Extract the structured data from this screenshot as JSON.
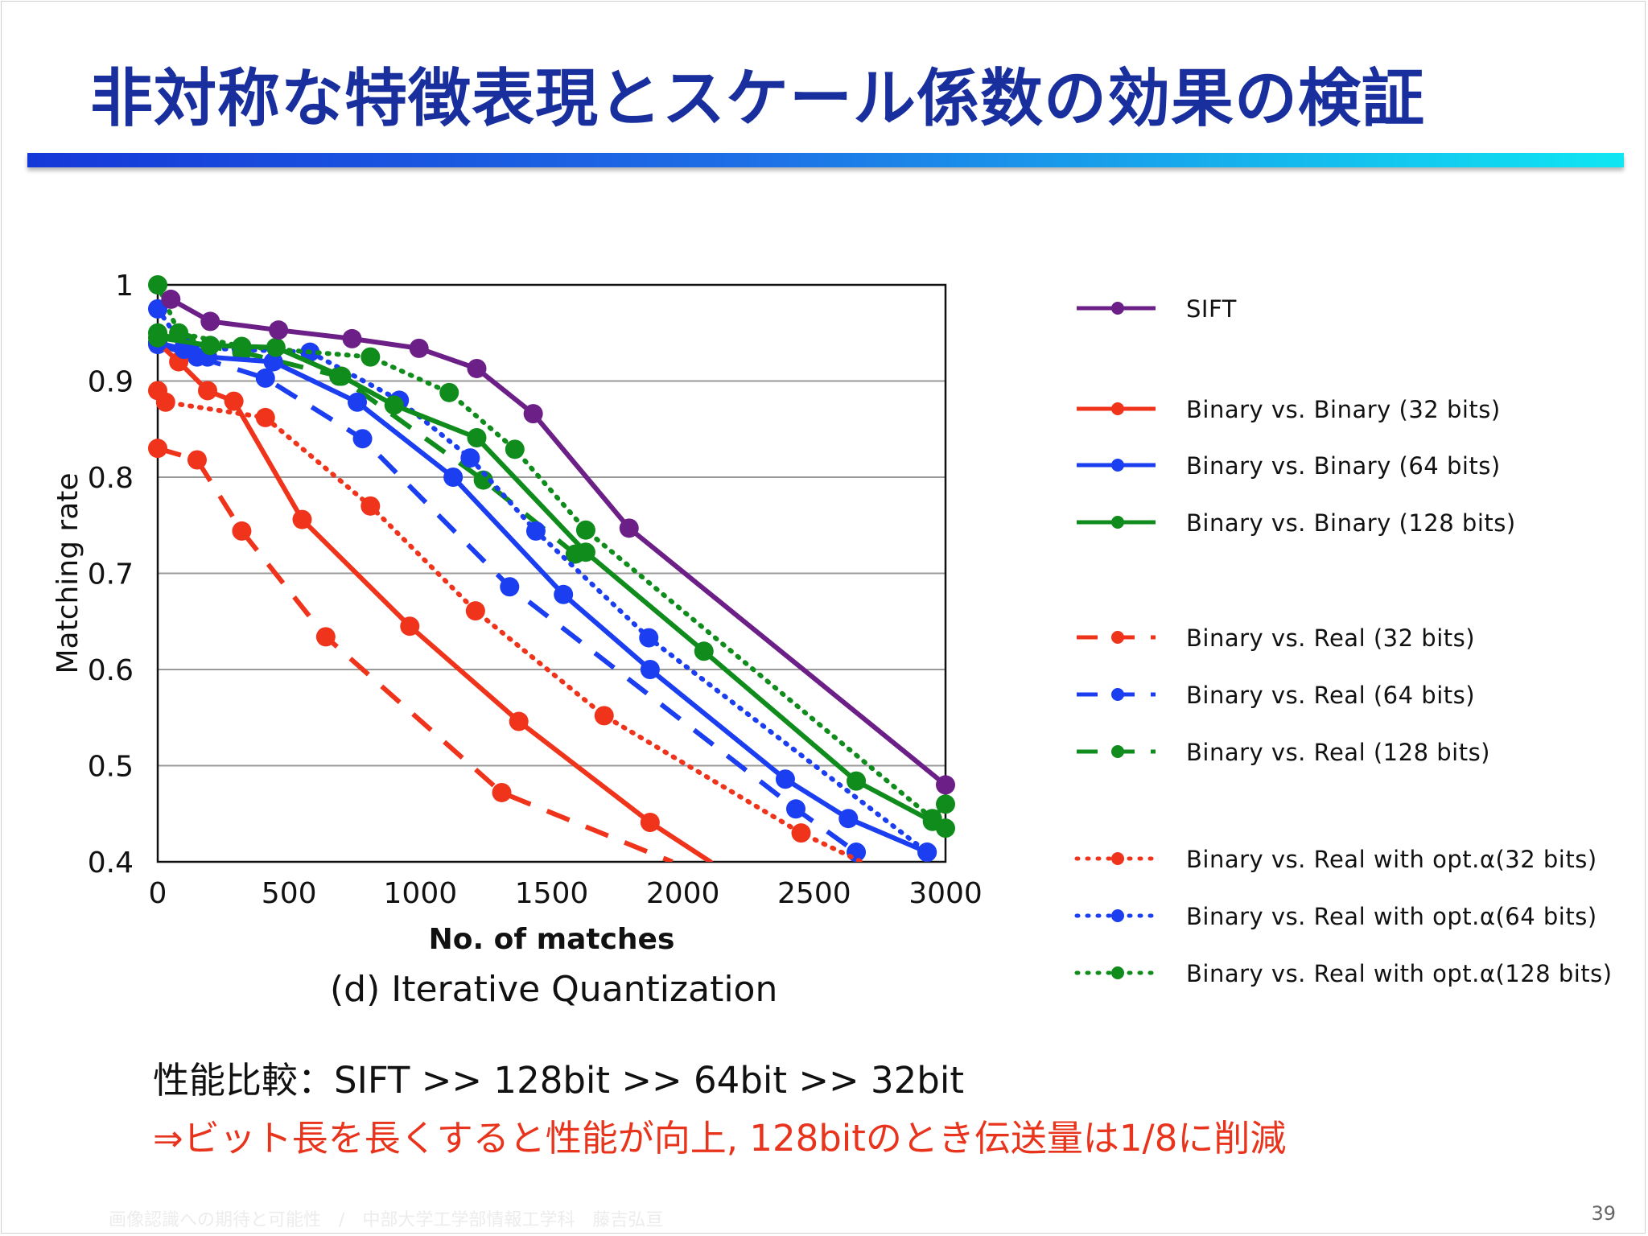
{
  "slide": {
    "title": "非対称な特徴表現とスケール係数の効果の検証",
    "caption": "(d) Iterative Quantization",
    "note_line1": "性能比較：SIFT >> 128bit >> 64bit >> 32bit",
    "note_line2": "⇒ビット長を長くすると性能が向上, 128bitのとき伝送量は1/8に削減",
    "footer": "画像認識への期待と可能性　/　中部大学工学部情報工学科　藤吉弘亘",
    "page_number": "39"
  },
  "chart_data": {
    "type": "line",
    "title": "",
    "xlabel": "No. of matches",
    "ylabel": "Matching rate",
    "xlim": [
      0,
      3000
    ],
    "ylim": [
      0.4,
      1.0
    ],
    "xticks": [
      0,
      500,
      1000,
      1500,
      2000,
      2500,
      3000
    ],
    "xtick_labels": [
      "0",
      "500",
      "1000",
      "1500",
      "2000",
      "2500",
      "3000"
    ],
    "yticks": [
      0.4,
      0.5,
      0.6,
      0.7,
      0.8,
      0.9,
      1.0
    ],
    "ytick_labels": [
      "0.4",
      "0.5",
      "0.6",
      "0.7",
      "0.8",
      "0.9",
      "1"
    ],
    "grid": "horizontal",
    "legend_position": "right",
    "series": [
      {
        "name": "SIFT",
        "color": "#6b1f87",
        "style": "solid",
        "points": [
          [
            50,
            0.985
          ],
          [
            200,
            0.962
          ],
          [
            460,
            0.953
          ],
          [
            740,
            0.944
          ],
          [
            995,
            0.934
          ],
          [
            1215,
            0.913
          ],
          [
            1430,
            0.866
          ],
          [
            1795,
            0.747
          ],
          [
            3000,
            0.48
          ]
        ]
      },
      {
        "name": "Binary vs. Binary (32 bits)",
        "color": "#f0341c",
        "style": "solid",
        "points": [
          [
            0,
            0.94
          ],
          [
            80,
            0.92
          ],
          [
            190,
            0.89
          ],
          [
            290,
            0.879
          ],
          [
            550,
            0.756
          ],
          [
            960,
            0.645
          ],
          [
            1375,
            0.546
          ],
          [
            1875,
            0.441
          ],
          [
            2105,
            0.4
          ]
        ]
      },
      {
        "name": "Binary vs. Binary (64 bits)",
        "color": "#1a3ef0",
        "style": "solid",
        "points": [
          [
            0,
            0.94
          ],
          [
            100,
            0.933
          ],
          [
            190,
            0.925
          ],
          [
            440,
            0.92
          ],
          [
            760,
            0.878
          ],
          [
            1125,
            0.8
          ],
          [
            1545,
            0.678
          ],
          [
            1875,
            0.6
          ],
          [
            2390,
            0.486
          ],
          [
            2630,
            0.445
          ],
          [
            2930,
            0.41
          ]
        ]
      },
      {
        "name": "Binary vs. Binary (128 bits)",
        "color": "#0f8c1c",
        "style": "solid",
        "points": [
          [
            0,
            0.945
          ],
          [
            200,
            0.937
          ],
          [
            450,
            0.935
          ],
          [
            700,
            0.905
          ],
          [
            900,
            0.875
          ],
          [
            1215,
            0.841
          ],
          [
            1630,
            0.722
          ],
          [
            2080,
            0.619
          ],
          [
            2660,
            0.484
          ],
          [
            2950,
            0.442
          ],
          [
            3000,
            0.435
          ]
        ]
      },
      {
        "name": "Binary vs. Real (32 bits)",
        "color": "#f0341c",
        "style": "dashed",
        "points": [
          [
            0,
            0.83
          ],
          [
            150,
            0.818
          ],
          [
            320,
            0.744
          ],
          [
            640,
            0.634
          ],
          [
            1310,
            0.472
          ],
          [
            1960,
            0.4
          ]
        ]
      },
      {
        "name": "Binary vs. Real (64 bits)",
        "color": "#1a3ef0",
        "style": "dashed",
        "points": [
          [
            0,
            0.938
          ],
          [
            150,
            0.925
          ],
          [
            410,
            0.903
          ],
          [
            780,
            0.84
          ],
          [
            1340,
            0.686
          ],
          [
            2430,
            0.455
          ],
          [
            2660,
            0.41
          ]
        ]
      },
      {
        "name": "Binary vs. Real (128 bits)",
        "color": "#0f8c1c",
        "style": "dashed",
        "points": [
          [
            0,
            0.95
          ],
          [
            110,
            0.94
          ],
          [
            320,
            0.93
          ],
          [
            690,
            0.905
          ],
          [
            1240,
            0.797
          ],
          [
            1590,
            0.72
          ]
        ]
      },
      {
        "name": "Binary vs. Real with opt.α(32 bits)",
        "color": "#f0341c",
        "style": "dotted",
        "points": [
          [
            0,
            0.89
          ],
          [
            30,
            0.878
          ],
          [
            410,
            0.862
          ],
          [
            810,
            0.77
          ],
          [
            1210,
            0.661
          ],
          [
            1700,
            0.552
          ],
          [
            2450,
            0.43
          ],
          [
            2680,
            0.4
          ]
        ]
      },
      {
        "name": "Binary vs. Real with opt.α(64 bits)",
        "color": "#1a3ef0",
        "style": "dotted",
        "points": [
          [
            0,
            0.975
          ],
          [
            100,
            0.935
          ],
          [
            580,
            0.93
          ],
          [
            920,
            0.88
          ],
          [
            1190,
            0.82
          ],
          [
            1440,
            0.744
          ],
          [
            1870,
            0.633
          ],
          [
            2930,
            0.41
          ]
        ]
      },
      {
        "name": "Binary vs. Real with opt.α(128 bits)",
        "color": "#0f8c1c",
        "style": "dotted",
        "points": [
          [
            0,
            1.0
          ],
          [
            80,
            0.95
          ],
          [
            320,
            0.936
          ],
          [
            810,
            0.925
          ],
          [
            1110,
            0.888
          ],
          [
            1360,
            0.829
          ],
          [
            1630,
            0.745
          ],
          [
            2950,
            0.445
          ],
          [
            3000,
            0.46
          ]
        ]
      }
    ]
  }
}
